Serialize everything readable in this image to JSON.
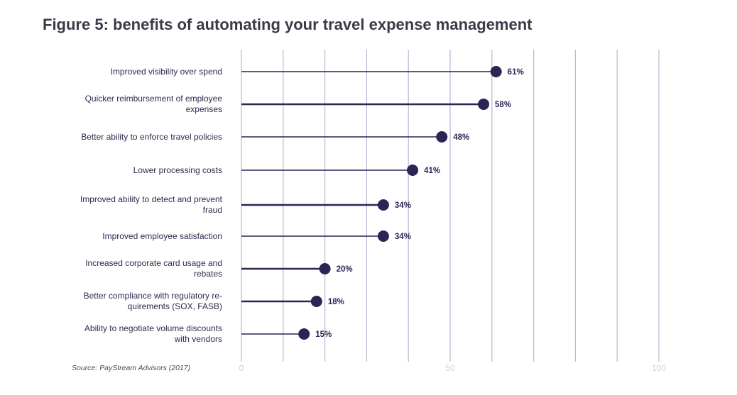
{
  "page": {
    "title": "Figure 5: benefits of automating your travel expense management",
    "source": "Source: PayStream Advisors (2017)"
  },
  "colors": {
    "marker": "#2a2555",
    "gridline": "#b9b8d2",
    "tick_text": "#d0d0da",
    "label_text": "#2d2b4d",
    "title_text": "#3a3a48"
  },
  "chart_data": {
    "type": "lollipop",
    "title": "Figure 5: benefits of automating your travel expense management",
    "xlabel": "",
    "ylabel": "",
    "xlim": [
      0,
      100
    ],
    "x_ticks": [
      0,
      50,
      100
    ],
    "x_tick_labels": [
      "0",
      "50",
      "100"
    ],
    "grid": true,
    "categories": [
      [
        "Improved visibility over spend"
      ],
      [
        "Quicker reimbursement of employee",
        "expenses"
      ],
      [
        "Better ability to enforce travel policies"
      ],
      [
        "Lower processing costs"
      ],
      [
        "Improved ability to detect and prevent",
        "fraud"
      ],
      [
        "Improved employee satisfaction"
      ],
      [
        "Increased corporate card usage and",
        "rebates"
      ],
      [
        "Better compliance with regulatory re-",
        "quirements (SOX, FASB)"
      ],
      [
        "Ability to negotiate volume discounts",
        "with vendors"
      ]
    ],
    "values": [
      61,
      58,
      48,
      41,
      34,
      34,
      20,
      18,
      15
    ],
    "value_labels": [
      "61%",
      "58%",
      "48%",
      "41%",
      "34%",
      "34%",
      "20%",
      "18%",
      "15%"
    ]
  }
}
